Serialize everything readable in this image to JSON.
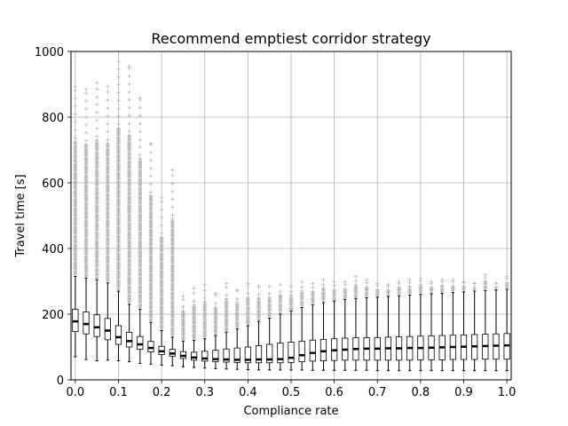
{
  "chart_data": {
    "type": "box",
    "title": "Recommend emptiest corridor strategy",
    "xlabel": "Compliance rate",
    "ylabel": "Travel time [s]",
    "xlim": [
      -0.01,
      1.01
    ],
    "ylim": [
      0,
      1000
    ],
    "grid": true,
    "x_ticks": [
      "0.0",
      "0.1",
      "0.2",
      "0.3",
      "0.4",
      "0.5",
      "0.6",
      "0.7",
      "0.8",
      "0.9",
      "1.0"
    ],
    "y_ticks": [
      "0",
      "200",
      "400",
      "600",
      "800",
      "1000"
    ],
    "colors": {
      "box": "#000000",
      "median": "#000000",
      "flier": "#aaaaaa",
      "grid": "#b0b0b0"
    },
    "boxes": [
      {
        "x": 0.0,
        "whislo": 70,
        "q1": 147,
        "med": 178,
        "q3": 215,
        "whishi": 315,
        "flier_max": 895
      },
      {
        "x": 0.025,
        "whislo": 62,
        "q1": 140,
        "med": 170,
        "q3": 207,
        "whishi": 310,
        "flier_max": 885
      },
      {
        "x": 0.05,
        "whislo": 58,
        "q1": 132,
        "med": 160,
        "q3": 198,
        "whishi": 305,
        "flier_max": 905
      },
      {
        "x": 0.075,
        "whislo": 60,
        "q1": 122,
        "med": 150,
        "q3": 187,
        "whishi": 295,
        "flier_max": 895
      },
      {
        "x": 0.1,
        "whislo": 58,
        "q1": 108,
        "med": 130,
        "q3": 165,
        "whishi": 270,
        "flier_max": 970
      },
      {
        "x": 0.125,
        "whislo": 55,
        "q1": 100,
        "med": 118,
        "q3": 145,
        "whishi": 230,
        "flier_max": 955
      },
      {
        "x": 0.15,
        "whislo": 50,
        "q1": 93,
        "med": 108,
        "q3": 132,
        "whishi": 215,
        "flier_max": 860
      },
      {
        "x": 0.175,
        "whislo": 48,
        "q1": 85,
        "med": 97,
        "q3": 117,
        "whishi": 175,
        "flier_max": 720
      },
      {
        "x": 0.2,
        "whislo": 45,
        "q1": 77,
        "med": 87,
        "q3": 102,
        "whishi": 150,
        "flier_max": 555
      },
      {
        "x": 0.225,
        "whislo": 43,
        "q1": 72,
        "med": 80,
        "q3": 93,
        "whishi": 130,
        "flier_max": 640
      },
      {
        "x": 0.25,
        "whislo": 40,
        "q1": 65,
        "med": 73,
        "q3": 86,
        "whishi": 118,
        "flier_max": 255
      },
      {
        "x": 0.275,
        "whislo": 38,
        "q1": 60,
        "med": 68,
        "q3": 84,
        "whishi": 120,
        "flier_max": 280
      },
      {
        "x": 0.3,
        "whislo": 36,
        "q1": 57,
        "med": 65,
        "q3": 87,
        "whishi": 125,
        "flier_max": 290
      },
      {
        "x": 0.325,
        "whislo": 34,
        "q1": 55,
        "med": 63,
        "q3": 90,
        "whishi": 135,
        "flier_max": 265
      },
      {
        "x": 0.35,
        "whislo": 33,
        "q1": 54,
        "med": 62,
        "q3": 94,
        "whishi": 145,
        "flier_max": 295
      },
      {
        "x": 0.375,
        "whislo": 32,
        "q1": 53,
        "med": 61,
        "q3": 97,
        "whishi": 155,
        "flier_max": 275
      },
      {
        "x": 0.4,
        "whislo": 31,
        "q1": 52,
        "med": 61,
        "q3": 100,
        "whishi": 165,
        "flier_max": 295
      },
      {
        "x": 0.425,
        "whislo": 30,
        "q1": 52,
        "med": 62,
        "q3": 104,
        "whishi": 178,
        "flier_max": 285
      },
      {
        "x": 0.45,
        "whislo": 30,
        "q1": 52,
        "med": 62,
        "q3": 108,
        "whishi": 188,
        "flier_max": 285
      },
      {
        "x": 0.475,
        "whislo": 30,
        "q1": 52,
        "med": 63,
        "q3": 112,
        "whishi": 200,
        "flier_max": 290
      },
      {
        "x": 0.5,
        "whislo": 30,
        "q1": 53,
        "med": 67,
        "q3": 115,
        "whishi": 210,
        "flier_max": 285
      },
      {
        "x": 0.525,
        "whislo": 30,
        "q1": 55,
        "med": 75,
        "q3": 118,
        "whishi": 220,
        "flier_max": 300
      },
      {
        "x": 0.55,
        "whislo": 29,
        "q1": 57,
        "med": 82,
        "q3": 121,
        "whishi": 228,
        "flier_max": 295
      },
      {
        "x": 0.575,
        "whislo": 29,
        "q1": 58,
        "med": 87,
        "q3": 123,
        "whishi": 235,
        "flier_max": 305
      },
      {
        "x": 0.6,
        "whislo": 29,
        "q1": 59,
        "med": 90,
        "q3": 125,
        "whishi": 240,
        "flier_max": 300
      },
      {
        "x": 0.625,
        "whislo": 29,
        "q1": 60,
        "med": 92,
        "q3": 127,
        "whishi": 245,
        "flier_max": 300
      },
      {
        "x": 0.65,
        "whislo": 29,
        "q1": 60,
        "med": 94,
        "q3": 128,
        "whishi": 248,
        "flier_max": 315
      },
      {
        "x": 0.675,
        "whislo": 29,
        "q1": 60,
        "med": 95,
        "q3": 128,
        "whishi": 250,
        "flier_max": 305
      },
      {
        "x": 0.7,
        "whislo": 28,
        "q1": 60,
        "med": 95,
        "q3": 129,
        "whishi": 252,
        "flier_max": 295
      },
      {
        "x": 0.725,
        "whislo": 28,
        "q1": 60,
        "med": 96,
        "q3": 130,
        "whishi": 254,
        "flier_max": 290
      },
      {
        "x": 0.75,
        "whislo": 28,
        "q1": 60,
        "med": 96,
        "q3": 131,
        "whishi": 256,
        "flier_max": 300
      },
      {
        "x": 0.775,
        "whislo": 28,
        "q1": 60,
        "med": 97,
        "q3": 132,
        "whishi": 258,
        "flier_max": 305
      },
      {
        "x": 0.8,
        "whislo": 28,
        "q1": 61,
        "med": 97,
        "q3": 133,
        "whishi": 260,
        "flier_max": 310
      },
      {
        "x": 0.825,
        "whislo": 28,
        "q1": 61,
        "med": 98,
        "q3": 134,
        "whishi": 262,
        "flier_max": 300
      },
      {
        "x": 0.85,
        "whislo": 28,
        "q1": 61,
        "med": 99,
        "q3": 135,
        "whishi": 264,
        "flier_max": 305
      },
      {
        "x": 0.875,
        "whislo": 28,
        "q1": 62,
        "med": 100,
        "q3": 136,
        "whishi": 266,
        "flier_max": 305
      },
      {
        "x": 0.9,
        "whislo": 28,
        "q1": 62,
        "med": 101,
        "q3": 137,
        "whishi": 268,
        "flier_max": 300
      },
      {
        "x": 0.925,
        "whislo": 28,
        "q1": 62,
        "med": 102,
        "q3": 138,
        "whishi": 270,
        "flier_max": 295
      },
      {
        "x": 0.95,
        "whislo": 28,
        "q1": 63,
        "med": 103,
        "q3": 139,
        "whishi": 272,
        "flier_max": 320
      },
      {
        "x": 0.975,
        "whislo": 28,
        "q1": 63,
        "med": 104,
        "q3": 140,
        "whishi": 274,
        "flier_max": 295
      },
      {
        "x": 1.0,
        "whislo": 28,
        "q1": 63,
        "med": 105,
        "q3": 141,
        "whishi": 276,
        "flier_max": 315
      }
    ]
  }
}
